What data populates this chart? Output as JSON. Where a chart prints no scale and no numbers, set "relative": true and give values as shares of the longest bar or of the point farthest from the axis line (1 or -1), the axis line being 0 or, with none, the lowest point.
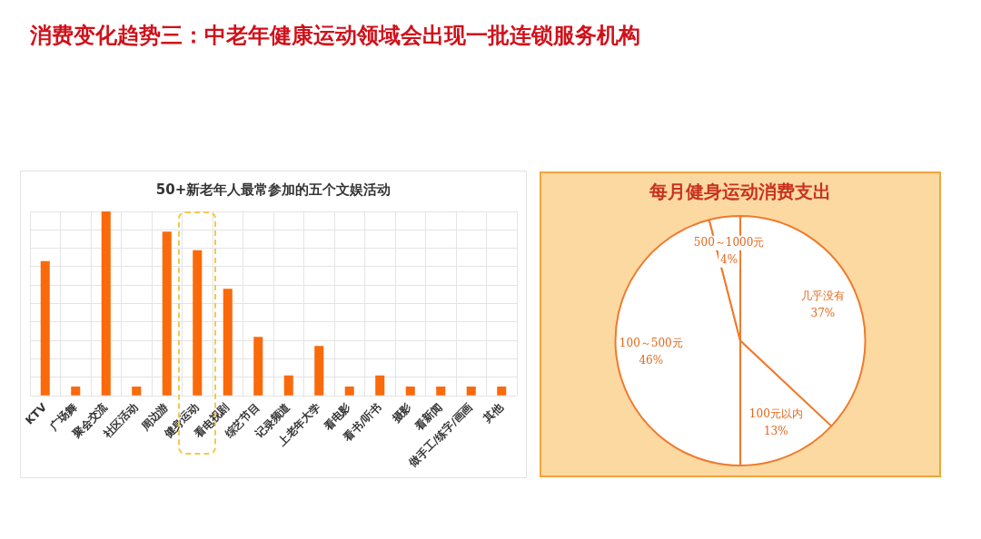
{
  "chart_data": [
    {
      "type": "bar",
      "title": "消费变化趋势三：中老年健康运动领域会出现一批连锁服务机构",
      "subtitle": "50+新老年人最常参加的五个文娱活动",
      "categories": [
        "KTV",
        "广场舞",
        "聚会交流",
        "社区活动",
        "周边游",
        "健身运动",
        "看电视剧",
        "综艺节目",
        "记录频道",
        "上老年大学",
        "看电影",
        "看书/听书",
        "摄影",
        "看新闻",
        "做手工/练字/画画",
        "其他"
      ],
      "values": [
        0.73,
        0.05,
        1,
        0.05,
        0.89,
        0.79,
        0.58,
        0.32,
        0.11,
        0.27,
        0.05,
        0.11,
        0.05,
        0.05,
        0.05,
        0.05
      ],
      "color": "#fa6a0a",
      "relative": true,
      "grid": true
    },
    {
      "type": "pie",
      "title": "每月健身运动消费支出",
      "categories": [
        "几乎没有",
        "100元以内",
        "100～500元",
        "500～1000元"
      ],
      "values": [
        37,
        13,
        46,
        4
      ],
      "colors": [
        "#ffffff",
        "#ffffff",
        "#ffffff",
        "#ffffff"
      ],
      "value_labels": [
        "37%",
        "13%",
        "46%",
        "4%"
      ]
    }
  ]
}
